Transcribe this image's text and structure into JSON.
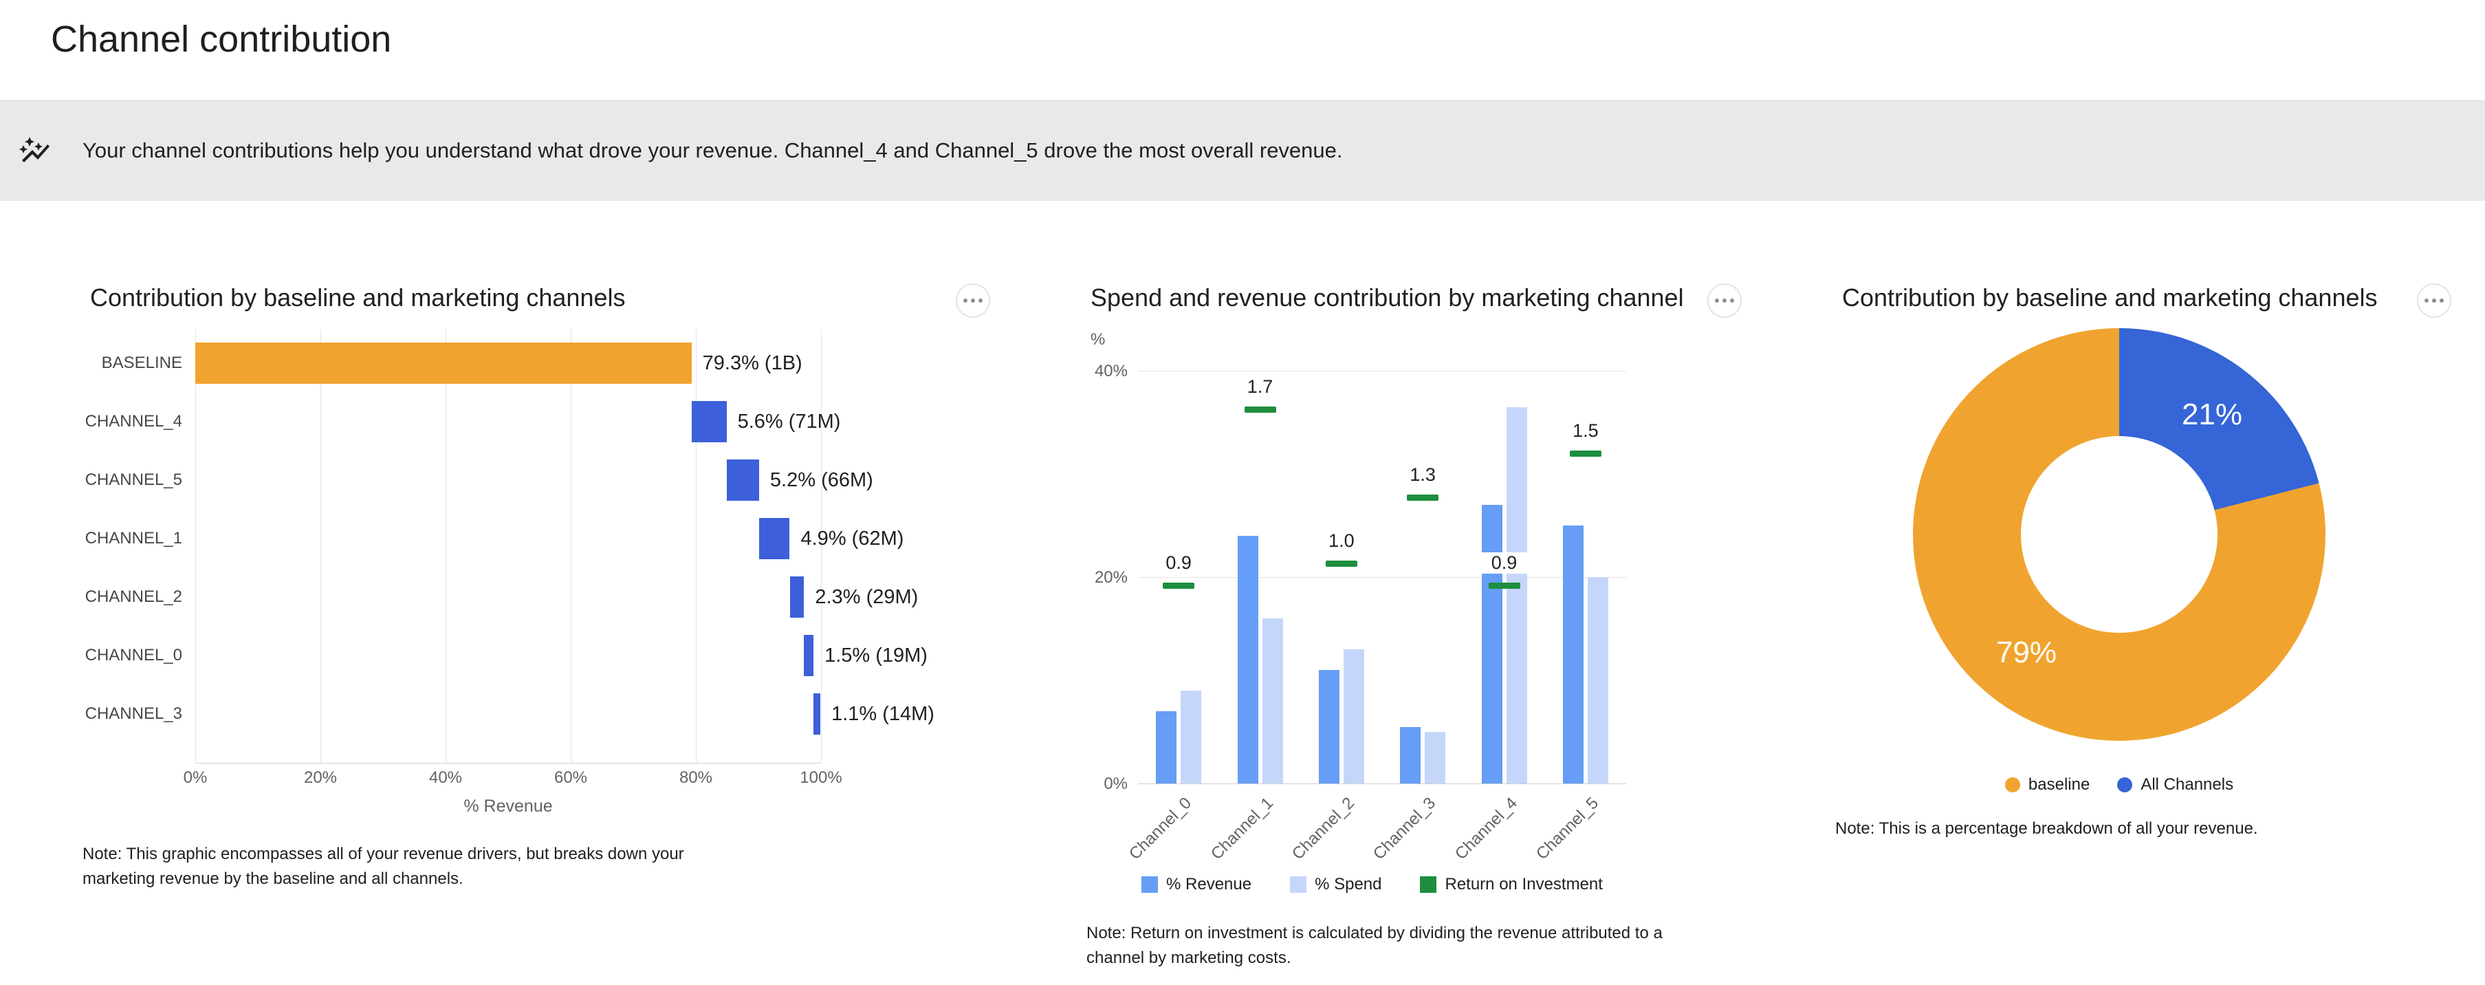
{
  "page": {
    "title": "Channel contribution"
  },
  "banner": {
    "icon": "insights-icon",
    "text": "Your channel contributions help you understand what drove your revenue. Channel_4 and Channel_5 drove the most overall revenue."
  },
  "colors": {
    "baseline_orange": "#F0A42F",
    "channel_blue": "#3D5FD9",
    "revenue_blue": "#669DF6",
    "spend_blue": "#C5D6FB",
    "roi_green": "#1E8E3E",
    "pie_blue": "#3565D6",
    "banner_bg": "#E9E9E9"
  },
  "chart_data": [
    {
      "type": "bar",
      "variant": "horizontal_waterfall",
      "title": "Contribution by baseline and marketing channels",
      "categories": [
        "BASELINE",
        "CHANNEL_4",
        "CHANNEL_5",
        "CHANNEL_1",
        "CHANNEL_2",
        "CHANNEL_0",
        "CHANNEL_3"
      ],
      "values_pct": [
        79.3,
        5.6,
        5.2,
        4.9,
        2.3,
        1.5,
        1.1
      ],
      "bar_labels": [
        "79.3% (1B)",
        "5.6% (71M)",
        "5.2% (66M)",
        "4.9% (62M)",
        "2.3% (29M)",
        "1.5% (19M)",
        "1.1% (14M)"
      ],
      "xlabel": "% Revenue",
      "x_ticks": [
        "0%",
        "20%",
        "40%",
        "60%",
        "80%",
        "100%"
      ],
      "xlim": [
        0,
        100
      ],
      "grid": true,
      "note": "Note: This graphic encompasses all of your revenue drivers, but breaks down your marketing revenue by the baseline and all channels."
    },
    {
      "type": "bar",
      "variant": "grouped_bars_with_roi_markers",
      "title": "Spend and revenue contribution by marketing channel",
      "categories": [
        "Channel_0",
        "Channel_1",
        "Channel_2",
        "Channel_3",
        "Channel_4",
        "Channel_5"
      ],
      "series": [
        {
          "name": "% Revenue",
          "values": [
            7,
            24,
            11,
            5.5,
            27,
            25
          ]
        },
        {
          "name": "% Spend",
          "values": [
            9,
            16,
            13,
            5,
            36.5,
            20
          ]
        },
        {
          "name": "Return on Investment",
          "values": [
            0.9,
            1.7,
            1.0,
            1.3,
            0.9,
            1.5
          ]
        }
      ],
      "marker_labels": [
        "0.9",
        "1.7",
        "1.0",
        "1.3",
        "0.9",
        "1.5"
      ],
      "ylabel": "%",
      "y_ticks": [
        "0%",
        "20%",
        "40%"
      ],
      "ylim": [
        0,
        40
      ],
      "grid": true,
      "legend_position": "bottom",
      "note": "Note: Return on investment is calculated by dividing the revenue attributed to a channel by marketing costs."
    },
    {
      "type": "pie",
      "variant": "donut",
      "title": "Contribution by baseline and marketing channels",
      "slices": [
        {
          "label": "All Channels",
          "value_pct": 21,
          "display": "21%"
        },
        {
          "label": "baseline",
          "value_pct": 79,
          "display": "79%"
        }
      ],
      "legend": [
        {
          "label": "baseline"
        },
        {
          "label": "All Channels"
        }
      ],
      "legend_position": "bottom",
      "note": "Note: This is a percentage breakdown of all your revenue."
    }
  ]
}
